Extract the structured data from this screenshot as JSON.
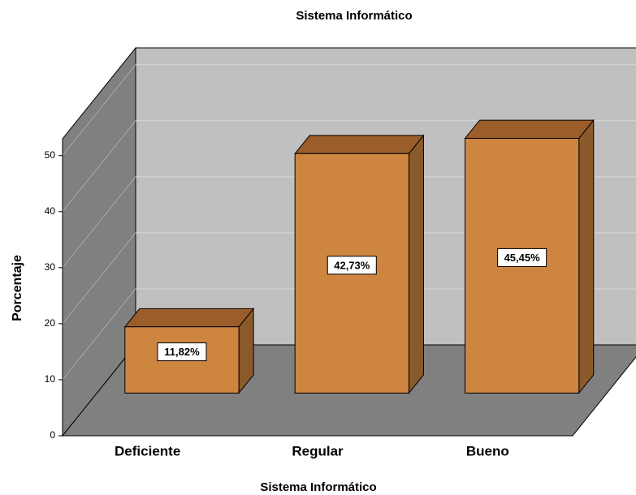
{
  "chart_data": {
    "type": "bar3d",
    "title": "Sistema Informático",
    "x_label": "Sistema Informático",
    "y_label": "Porcentaje",
    "categories": [
      "Deficiente",
      "Regular",
      "Bueno"
    ],
    "values": [
      11.82,
      42.73,
      45.45
    ],
    "value_labels": [
      "11,82%",
      "42,73%",
      "45,45%"
    ],
    "color": "#cd853f",
    "ylim": [
      0,
      53
    ],
    "yticks": [
      0,
      10,
      20,
      30,
      40,
      50
    ],
    "grid": true
  }
}
